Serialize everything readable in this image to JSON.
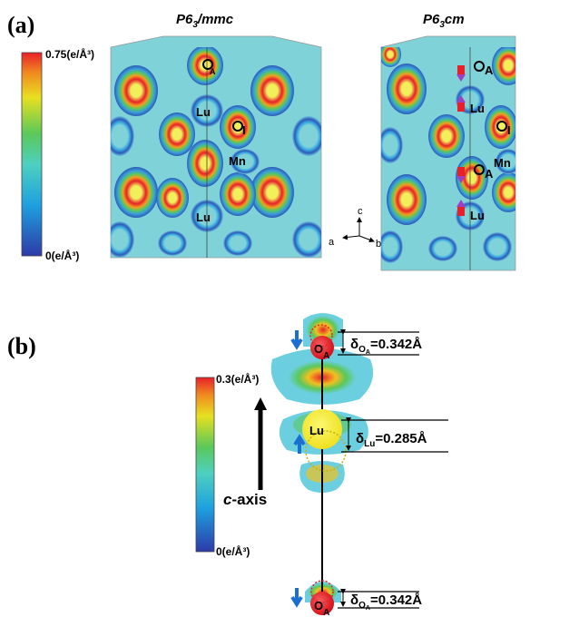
{
  "panel_a": {
    "label": "(a)",
    "colorbar": {
      "max_label": "0.75(e/Å³)",
      "min_label": "0(e/Å³)"
    },
    "left_title_italic": "P6",
    "left_title_sub": "3",
    "left_title_rest": "/mmc",
    "right_title_italic": "P6",
    "right_title_sub": "3",
    "right_title_rest": "cm",
    "atoms": {
      "oa": "O",
      "oa_sub": "A",
      "lu": "Lu",
      "oi": "O",
      "oi_sub": "I",
      "mn": "Mn"
    },
    "axes": {
      "c": "c",
      "a": "a",
      "b": "b"
    }
  },
  "panel_b": {
    "label": "(b)",
    "colorbar": {
      "max_label": "0.3(e/Å³)",
      "min_label": "0(e/Å³)"
    },
    "caxis_italic": "c",
    "caxis_rest": "-axis",
    "atoms": {
      "o": "O",
      "o_sub": "A",
      "lu": "Lu"
    },
    "delta_oa_top": {
      "delta": "δ",
      "o": "O",
      "sub": "A",
      "value": "=0.342Å"
    },
    "delta_lu": {
      "delta": "δ",
      "sub": "Lu",
      "value": "=0.285Å"
    },
    "delta_oa_bottom": {
      "delta": "δ",
      "o": "O",
      "sub": "A",
      "value": "=0.342Å"
    }
  },
  "colors": {
    "high": "#e8202a",
    "mid": "#f0e020",
    "green": "#5ac85a",
    "cyan": "#6ccfe0",
    "low": "#2d3aa8",
    "cell_bg": "#7fd3d8"
  }
}
